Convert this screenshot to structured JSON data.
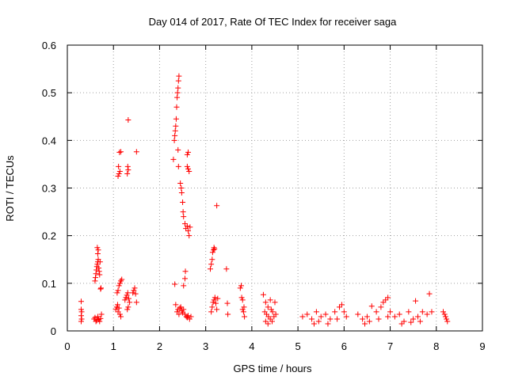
{
  "chart_data": {
    "type": "scatter",
    "title": "Day 014 of 2017, Rate Of TEC Index for receiver saga",
    "xlabel": "GPS time / hours",
    "ylabel": "ROTI / TECUs",
    "xlim": [
      0,
      9
    ],
    "ylim": [
      0,
      0.6
    ],
    "xticks": [
      "0",
      "1",
      "2",
      "3",
      "4",
      "5",
      "6",
      "7",
      "8",
      "9"
    ],
    "yticks": [
      "0",
      "0.1",
      "0.2",
      "0.3",
      "0.4",
      "0.5",
      "0.6"
    ],
    "grid": true,
    "marker": "plus",
    "color": "#ff0000",
    "series": [
      {
        "points": [
          [
            0.3,
            0.062
          ],
          [
            0.3,
            0.045
          ],
          [
            0.31,
            0.04
          ],
          [
            0.3,
            0.032
          ],
          [
            0.31,
            0.025
          ],
          [
            0.3,
            0.02
          ],
          [
            0.58,
            0.025
          ],
          [
            0.6,
            0.028
          ],
          [
            0.62,
            0.02
          ],
          [
            0.64,
            0.022
          ],
          [
            0.66,
            0.03
          ],
          [
            0.68,
            0.024
          ],
          [
            0.7,
            0.02
          ],
          [
            0.72,
            0.026
          ],
          [
            0.74,
            0.035
          ],
          [
            0.6,
            0.105
          ],
          [
            0.61,
            0.112
          ],
          [
            0.62,
            0.12
          ],
          [
            0.63,
            0.128
          ],
          [
            0.64,
            0.135
          ],
          [
            0.65,
            0.14
          ],
          [
            0.66,
            0.145
          ],
          [
            0.67,
            0.15
          ],
          [
            0.66,
            0.162
          ],
          [
            0.67,
            0.17
          ],
          [
            0.65,
            0.175
          ],
          [
            0.68,
            0.132
          ],
          [
            0.69,
            0.125
          ],
          [
            0.7,
            0.118
          ],
          [
            0.71,
            0.145
          ],
          [
            0.72,
            0.088
          ],
          [
            0.73,
            0.09
          ],
          [
            1.05,
            0.045
          ],
          [
            1.07,
            0.05
          ],
          [
            1.09,
            0.055
          ],
          [
            1.1,
            0.04
          ],
          [
            1.12,
            0.048
          ],
          [
            1.14,
            0.035
          ],
          [
            1.16,
            0.03
          ],
          [
            1.08,
            0.08
          ],
          [
            1.1,
            0.085
          ],
          [
            1.12,
            0.095
          ],
          [
            1.14,
            0.1
          ],
          [
            1.16,
            0.105
          ],
          [
            1.18,
            0.108
          ],
          [
            1.1,
            0.325
          ],
          [
            1.12,
            0.33
          ],
          [
            1.14,
            0.335
          ],
          [
            1.11,
            0.345
          ],
          [
            1.13,
            0.375
          ],
          [
            1.16,
            0.376
          ],
          [
            1.25,
            0.065
          ],
          [
            1.27,
            0.07
          ],
          [
            1.29,
            0.075
          ],
          [
            1.31,
            0.08
          ],
          [
            1.33,
            0.068
          ],
          [
            1.35,
            0.06
          ],
          [
            1.3,
            0.045
          ],
          [
            1.32,
            0.05
          ],
          [
            1.3,
            0.33
          ],
          [
            1.32,
            0.338
          ],
          [
            1.31,
            0.345
          ],
          [
            1.32,
            0.443
          ],
          [
            1.42,
            0.08
          ],
          [
            1.44,
            0.085
          ],
          [
            1.46,
            0.09
          ],
          [
            1.48,
            0.078
          ],
          [
            1.5,
            0.06
          ],
          [
            1.5,
            0.376
          ],
          [
            2.3,
            0.36
          ],
          [
            2.32,
            0.4
          ],
          [
            2.33,
            0.41
          ],
          [
            2.34,
            0.42
          ],
          [
            2.35,
            0.43
          ],
          [
            2.36,
            0.445
          ],
          [
            2.37,
            0.47
          ],
          [
            2.38,
            0.49
          ],
          [
            2.39,
            0.5
          ],
          [
            2.4,
            0.51
          ],
          [
            2.41,
            0.525
          ],
          [
            2.42,
            0.535
          ],
          [
            2.4,
            0.38
          ],
          [
            2.41,
            0.345
          ],
          [
            2.33,
            0.098
          ],
          [
            2.35,
            0.055
          ],
          [
            2.38,
            0.04
          ],
          [
            2.4,
            0.045
          ],
          [
            2.42,
            0.035
          ],
          [
            2.44,
            0.048
          ],
          [
            2.46,
            0.05
          ],
          [
            2.48,
            0.042
          ],
          [
            2.5,
            0.038
          ],
          [
            2.52,
            0.045
          ],
          [
            2.55,
            0.035
          ],
          [
            2.58,
            0.03
          ],
          [
            2.6,
            0.028
          ],
          [
            2.62,
            0.032
          ],
          [
            2.65,
            0.025
          ],
          [
            2.68,
            0.03
          ],
          [
            2.45,
            0.31
          ],
          [
            2.47,
            0.3
          ],
          [
            2.48,
            0.29
          ],
          [
            2.5,
            0.27
          ],
          [
            2.51,
            0.25
          ],
          [
            2.52,
            0.24
          ],
          [
            2.55,
            0.225
          ],
          [
            2.57,
            0.215
          ],
          [
            2.6,
            0.22
          ],
          [
            2.62,
            0.21
          ],
          [
            2.64,
            0.2
          ],
          [
            2.66,
            0.218
          ],
          [
            2.6,
            0.345
          ],
          [
            2.62,
            0.34
          ],
          [
            2.64,
            0.335
          ],
          [
            2.6,
            0.37
          ],
          [
            2.62,
            0.375
          ],
          [
            2.55,
            0.11
          ],
          [
            2.56,
            0.125
          ],
          [
            2.52,
            0.095
          ],
          [
            3.1,
            0.13
          ],
          [
            3.12,
            0.14
          ],
          [
            3.14,
            0.15
          ],
          [
            3.15,
            0.165
          ],
          [
            3.17,
            0.17
          ],
          [
            3.18,
            0.175
          ],
          [
            3.19,
            0.172
          ],
          [
            3.24,
            0.263
          ],
          [
            3.12,
            0.04
          ],
          [
            3.14,
            0.05
          ],
          [
            3.16,
            0.06
          ],
          [
            3.18,
            0.065
          ],
          [
            3.2,
            0.07
          ],
          [
            3.22,
            0.058
          ],
          [
            3.24,
            0.045
          ],
          [
            3.26,
            0.068
          ],
          [
            3.45,
            0.13
          ],
          [
            3.47,
            0.058
          ],
          [
            3.48,
            0.035
          ],
          [
            3.75,
            0.09
          ],
          [
            3.77,
            0.095
          ],
          [
            3.78,
            0.07
          ],
          [
            3.8,
            0.065
          ],
          [
            3.8,
            0.045
          ],
          [
            3.82,
            0.04
          ],
          [
            3.83,
            0.05
          ],
          [
            3.84,
            0.03
          ],
          [
            4.25,
            0.076
          ],
          [
            4.3,
            0.06
          ],
          [
            4.35,
            0.05
          ],
          [
            4.4,
            0.065
          ],
          [
            4.45,
            0.04
          ],
          [
            4.5,
            0.06
          ],
          [
            4.28,
            0.04
          ],
          [
            4.32,
            0.035
          ],
          [
            4.36,
            0.03
          ],
          [
            4.4,
            0.025
          ],
          [
            4.44,
            0.02
          ],
          [
            4.48,
            0.03
          ],
          [
            4.52,
            0.035
          ],
          [
            4.3,
            0.02
          ],
          [
            4.35,
            0.015
          ],
          [
            4.42,
            0.045
          ],
          [
            5.1,
            0.03
          ],
          [
            5.2,
            0.035
          ],
          [
            5.3,
            0.025
          ],
          [
            5.4,
            0.04
          ],
          [
            5.5,
            0.03
          ],
          [
            5.6,
            0.035
          ],
          [
            5.7,
            0.025
          ],
          [
            5.8,
            0.04
          ],
          [
            5.9,
            0.05
          ],
          [
            5.95,
            0.055
          ],
          [
            6.0,
            0.04
          ],
          [
            5.35,
            0.015
          ],
          [
            5.45,
            0.02
          ],
          [
            5.65,
            0.015
          ],
          [
            5.85,
            0.025
          ],
          [
            6.05,
            0.03
          ],
          [
            6.3,
            0.035
          ],
          [
            6.4,
            0.025
          ],
          [
            6.5,
            0.03
          ],
          [
            6.6,
            0.052
          ],
          [
            6.7,
            0.04
          ],
          [
            6.8,
            0.05
          ],
          [
            6.85,
            0.06
          ],
          [
            6.9,
            0.065
          ],
          [
            6.95,
            0.07
          ],
          [
            7.0,
            0.04
          ],
          [
            6.45,
            0.015
          ],
          [
            6.55,
            0.02
          ],
          [
            6.75,
            0.025
          ],
          [
            6.95,
            0.03
          ],
          [
            7.1,
            0.03
          ],
          [
            7.2,
            0.035
          ],
          [
            7.3,
            0.02
          ],
          [
            7.4,
            0.04
          ],
          [
            7.5,
            0.025
          ],
          [
            7.55,
            0.063
          ],
          [
            7.6,
            0.03
          ],
          [
            7.7,
            0.04
          ],
          [
            7.8,
            0.035
          ],
          [
            7.85,
            0.078
          ],
          [
            7.9,
            0.04
          ],
          [
            7.25,
            0.015
          ],
          [
            7.45,
            0.018
          ],
          [
            7.65,
            0.02
          ],
          [
            8.15,
            0.04
          ],
          [
            8.18,
            0.035
          ],
          [
            8.2,
            0.03
          ],
          [
            8.22,
            0.025
          ],
          [
            8.24,
            0.02
          ]
        ]
      }
    ]
  }
}
